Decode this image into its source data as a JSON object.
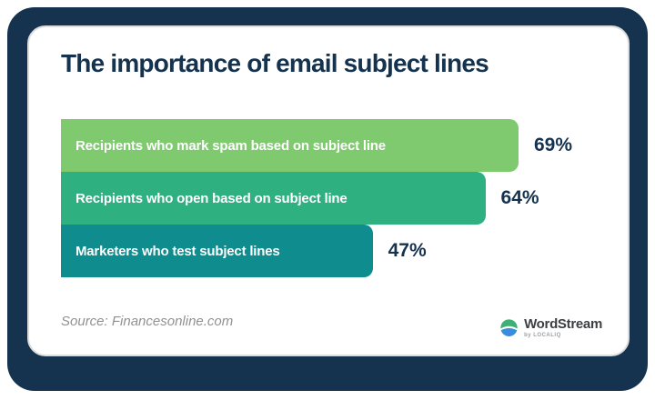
{
  "card": {
    "title": "The importance of email subject lines",
    "source": "Source: Financesonline.com"
  },
  "chart_data": {
    "type": "bar",
    "orientation": "horizontal",
    "title": "The importance of email subject lines",
    "categories": [
      "Recipients who mark spam based on subject line",
      "Recipients who open based on subject line",
      "Marketers who test subject lines"
    ],
    "values": [
      69,
      64,
      47
    ],
    "value_labels": [
      "69%",
      "64%",
      "47%"
    ],
    "bar_colors": [
      "#7FC96F",
      "#2EB080",
      "#0E8C8E"
    ],
    "xlim": [
      0,
      100
    ],
    "grid": false,
    "legend": false,
    "value_label_position": "right-of-bar",
    "label_position": "inside-left",
    "label_text_color": "#ffffff"
  },
  "branding": {
    "logo_text": "WordStream",
    "logo_subtext": "by LOCALIQ",
    "logo_icon": "wordstream-wave-circle-icon",
    "icon_top_color": "#3BB273",
    "icon_bottom_color": "#3A8DDE"
  },
  "colors": {
    "frame_navy": "#15334E",
    "title_navy": "#15334E",
    "card_border": "#DCDCDC",
    "source_gray": "#8F9194"
  }
}
